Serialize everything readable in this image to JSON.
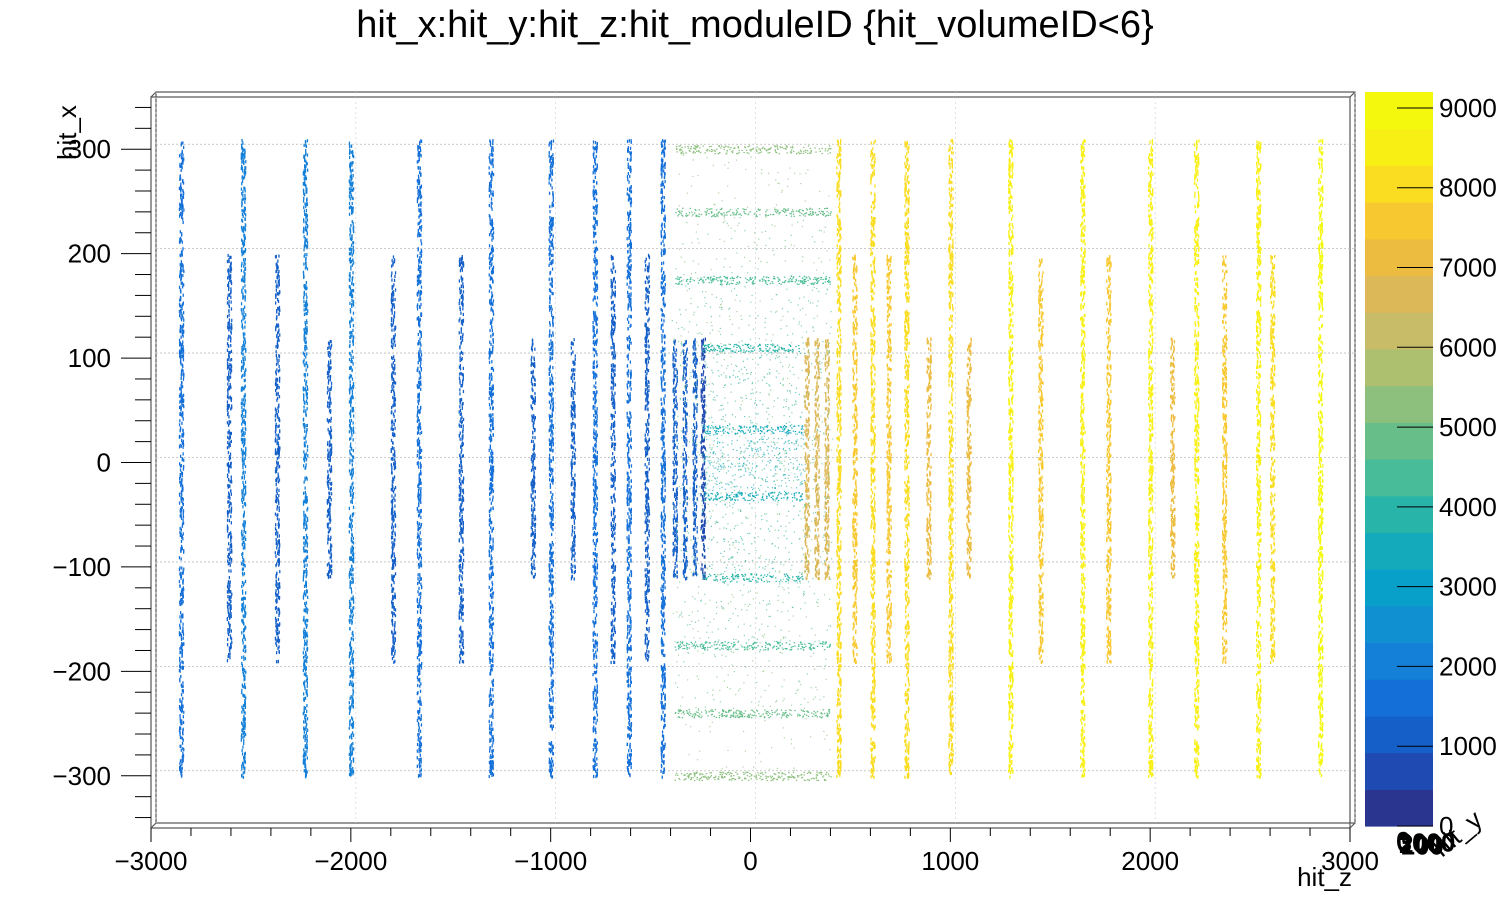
{
  "chart_data": {
    "type": "scatter",
    "title": "hit_x:hit_y:hit_z:hit_moduleID {hit_volumeID<6}",
    "xlabel": "hit_z",
    "ylabel": "hit_x",
    "zlabel": "hit_y",
    "xlim": [
      -3000,
      3000
    ],
    "ylim": [
      -350,
      350
    ],
    "color_variable": "hit_moduleID",
    "color_range": [
      0,
      9000
    ],
    "x_ticks": [
      "−3000",
      "−2000",
      "−1000",
      "0",
      "1000",
      "2000",
      "3000"
    ],
    "x_tick_values": [
      -3000,
      -2000,
      -1000,
      0,
      1000,
      2000,
      3000
    ],
    "y_ticks": [
      "−300",
      "−200",
      "−100",
      "0",
      "100",
      "200",
      "300"
    ],
    "y_tick_values": [
      -300,
      -200,
      -100,
      0,
      100,
      200,
      300
    ],
    "z_ticks_overlapping": [
      "0",
      "3000",
      "200",
      "100"
    ],
    "colorbar_ticks": [
      "0",
      "1000",
      "2000",
      "3000",
      "4000",
      "5000",
      "6000",
      "7000",
      "8000",
      "9000"
    ],
    "colorbar_tick_values": [
      0,
      1000,
      2000,
      3000,
      4000,
      5000,
      6000,
      7000,
      8000,
      9000
    ],
    "grid": true,
    "palette": [
      "#2a3590",
      "#1f4ab2",
      "#1460c8",
      "#1470d8",
      "#1480d8",
      "#1090d0",
      "#08a0c8",
      "#14aabc",
      "#28b4a8",
      "#48bc98",
      "#68be88",
      "#8cc07c",
      "#acc070",
      "#c8bc68",
      "#dcb858",
      "#ecbc40",
      "#f8c830",
      "#fadc20",
      "#f8f014",
      "#f4f80c"
    ],
    "disk_layers_negative_z": [
      {
        "z": -2850,
        "x_min": -300,
        "x_max": 310,
        "module_id": 1700
      },
      {
        "z": -2610,
        "x_min": -190,
        "x_max": 200,
        "module_id": 950
      },
      {
        "z": -2540,
        "x_min": -300,
        "x_max": 310,
        "module_id": 1900
      },
      {
        "z": -2370,
        "x_min": -190,
        "x_max": 200,
        "module_id": 1000
      },
      {
        "z": -2230,
        "x_min": -300,
        "x_max": 310,
        "module_id": 1950
      },
      {
        "z": -2110,
        "x_min": -110,
        "x_max": 120,
        "module_id": 900
      },
      {
        "z": -2000,
        "x_min": -300,
        "x_max": 310,
        "module_id": 1800
      },
      {
        "z": -1790,
        "x_min": -190,
        "x_max": 200,
        "module_id": 1200
      },
      {
        "z": -1660,
        "x_min": -300,
        "x_max": 310,
        "module_id": 1700
      },
      {
        "z": -1450,
        "x_min": -190,
        "x_max": 200,
        "module_id": 1300
      },
      {
        "z": -1300,
        "x_min": -300,
        "x_max": 310,
        "module_id": 1600
      },
      {
        "z": -1090,
        "x_min": -110,
        "x_max": 120,
        "module_id": 1000
      },
      {
        "z": -1000,
        "x_min": -300,
        "x_max": 310,
        "module_id": 1500
      },
      {
        "z": -890,
        "x_min": -110,
        "x_max": 120,
        "module_id": 1000
      },
      {
        "z": -780,
        "x_min": -300,
        "x_max": 310,
        "module_id": 1500
      },
      {
        "z": -690,
        "x_min": -190,
        "x_max": 200,
        "module_id": 1200
      },
      {
        "z": -610,
        "x_min": -300,
        "x_max": 310,
        "module_id": 1600
      },
      {
        "z": -520,
        "x_min": -190,
        "x_max": 200,
        "module_id": 1200
      },
      {
        "z": -440,
        "x_min": -300,
        "x_max": 310,
        "module_id": 1700
      },
      {
        "z": -380,
        "x_min": -110,
        "x_max": 120,
        "module_id": 1000
      },
      {
        "z": -330,
        "x_min": -110,
        "x_max": 120,
        "module_id": 950
      },
      {
        "z": -280,
        "x_min": -110,
        "x_max": 120,
        "module_id": 900
      },
      {
        "z": -240,
        "x_min": -110,
        "x_max": 120,
        "module_id": 850
      }
    ],
    "barrel_layers": [
      {
        "x_band": [
          -32,
          32
        ],
        "z_range": [
          -240,
          260
        ],
        "module_id": 3300
      },
      {
        "x_band": [
          -110,
          110
        ],
        "z_range": [
          -240,
          260
        ],
        "module_id": 3800
      },
      {
        "x_band": [
          -175,
          175
        ],
        "z_range": [
          -380,
          400
        ],
        "module_id": 4300
      },
      {
        "x_band": [
          -240,
          240
        ],
        "z_range": [
          -380,
          400
        ],
        "module_id": 4800
      },
      {
        "x_band": [
          -300,
          300
        ],
        "z_range": [
          -380,
          400
        ],
        "module_id": 5300
      }
    ],
    "disk_layers_positive_z": [
      {
        "z": 280,
        "x_min": -110,
        "x_max": 120,
        "module_id": 6500
      },
      {
        "z": 330,
        "x_min": -110,
        "x_max": 120,
        "module_id": 6600
      },
      {
        "z": 380,
        "x_min": -110,
        "x_max": 120,
        "module_id": 6700
      },
      {
        "z": 440,
        "x_min": -300,
        "x_max": 310,
        "module_id": 7700
      },
      {
        "z": 520,
        "x_min": -190,
        "x_max": 200,
        "module_id": 7200
      },
      {
        "z": 610,
        "x_min": -300,
        "x_max": 310,
        "module_id": 7800
      },
      {
        "z": 690,
        "x_min": -190,
        "x_max": 200,
        "module_id": 7300
      },
      {
        "z": 780,
        "x_min": -300,
        "x_max": 310,
        "module_id": 7900
      },
      {
        "z": 890,
        "x_min": -110,
        "x_max": 120,
        "module_id": 6800
      },
      {
        "z": 1000,
        "x_min": -300,
        "x_max": 310,
        "module_id": 8000
      },
      {
        "z": 1090,
        "x_min": -110,
        "x_max": 120,
        "module_id": 6900
      },
      {
        "z": 1300,
        "x_min": -300,
        "x_max": 310,
        "module_id": 8100
      },
      {
        "z": 1450,
        "x_min": -190,
        "x_max": 200,
        "module_id": 7400
      },
      {
        "z": 1660,
        "x_min": -300,
        "x_max": 310,
        "module_id": 8200
      },
      {
        "z": 1790,
        "x_min": -190,
        "x_max": 200,
        "module_id": 7500
      },
      {
        "z": 2000,
        "x_min": -300,
        "x_max": 310,
        "module_id": 8300
      },
      {
        "z": 2110,
        "x_min": -110,
        "x_max": 120,
        "module_id": 7000
      },
      {
        "z": 2230,
        "x_min": -300,
        "x_max": 310,
        "module_id": 8400
      },
      {
        "z": 2370,
        "x_min": -190,
        "x_max": 200,
        "module_id": 7600
      },
      {
        "z": 2540,
        "x_min": -300,
        "x_max": 310,
        "module_id": 8500
      },
      {
        "z": 2610,
        "x_min": -190,
        "x_max": 200,
        "module_id": 7700
      },
      {
        "z": 2850,
        "x_min": -300,
        "x_max": 310,
        "module_id": 8600
      }
    ]
  }
}
